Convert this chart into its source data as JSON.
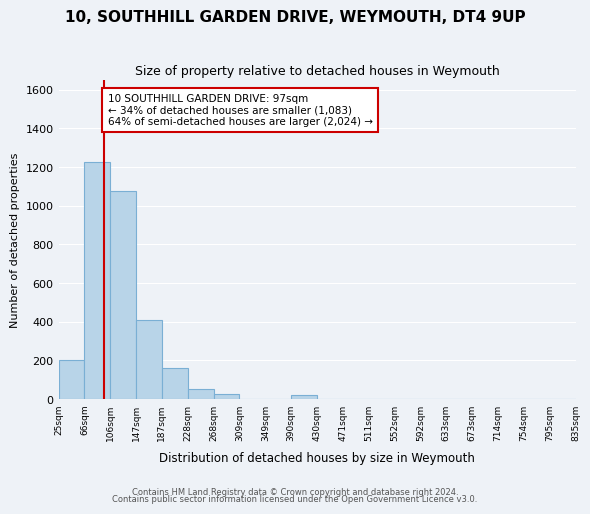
{
  "title": "10, SOUTHHILL GARDEN DRIVE, WEYMOUTH, DT4 9UP",
  "subtitle": "Size of property relative to detached houses in Weymouth",
  "xlabel": "Distribution of detached houses by size in Weymouth",
  "ylabel": "Number of detached properties",
  "bin_labels": [
    "25sqm",
    "66sqm",
    "106sqm",
    "147sqm",
    "187sqm",
    "228sqm",
    "268sqm",
    "309sqm",
    "349sqm",
    "390sqm",
    "430sqm",
    "471sqm",
    "511sqm",
    "552sqm",
    "592sqm",
    "633sqm",
    "673sqm",
    "714sqm",
    "754sqm",
    "795sqm",
    "835sqm"
  ],
  "bar_values": [
    205,
    1225,
    1075,
    410,
    160,
    55,
    28,
    0,
    0,
    20,
    0,
    0,
    0,
    0,
    0,
    0,
    0,
    0,
    0,
    0
  ],
  "bar_color": "#b8d4e8",
  "bar_edge_color": "#7aafd4",
  "vline_color": "#cc0000",
  "annotation_text": "10 SOUTHHILL GARDEN DRIVE: 97sqm\n← 34% of detached houses are smaller (1,083)\n64% of semi-detached houses are larger (2,024) →",
  "annotation_box_color": "#ffffff",
  "annotation_box_edge": "#cc0000",
  "ylim": [
    0,
    1650
  ],
  "yticks": [
    0,
    200,
    400,
    600,
    800,
    1000,
    1200,
    1400,
    1600
  ],
  "footer1": "Contains HM Land Registry data © Crown copyright and database right 2024.",
  "footer2": "Contains public sector information licensed under the Open Government Licence v3.0.",
  "bg_color": "#eef2f7"
}
